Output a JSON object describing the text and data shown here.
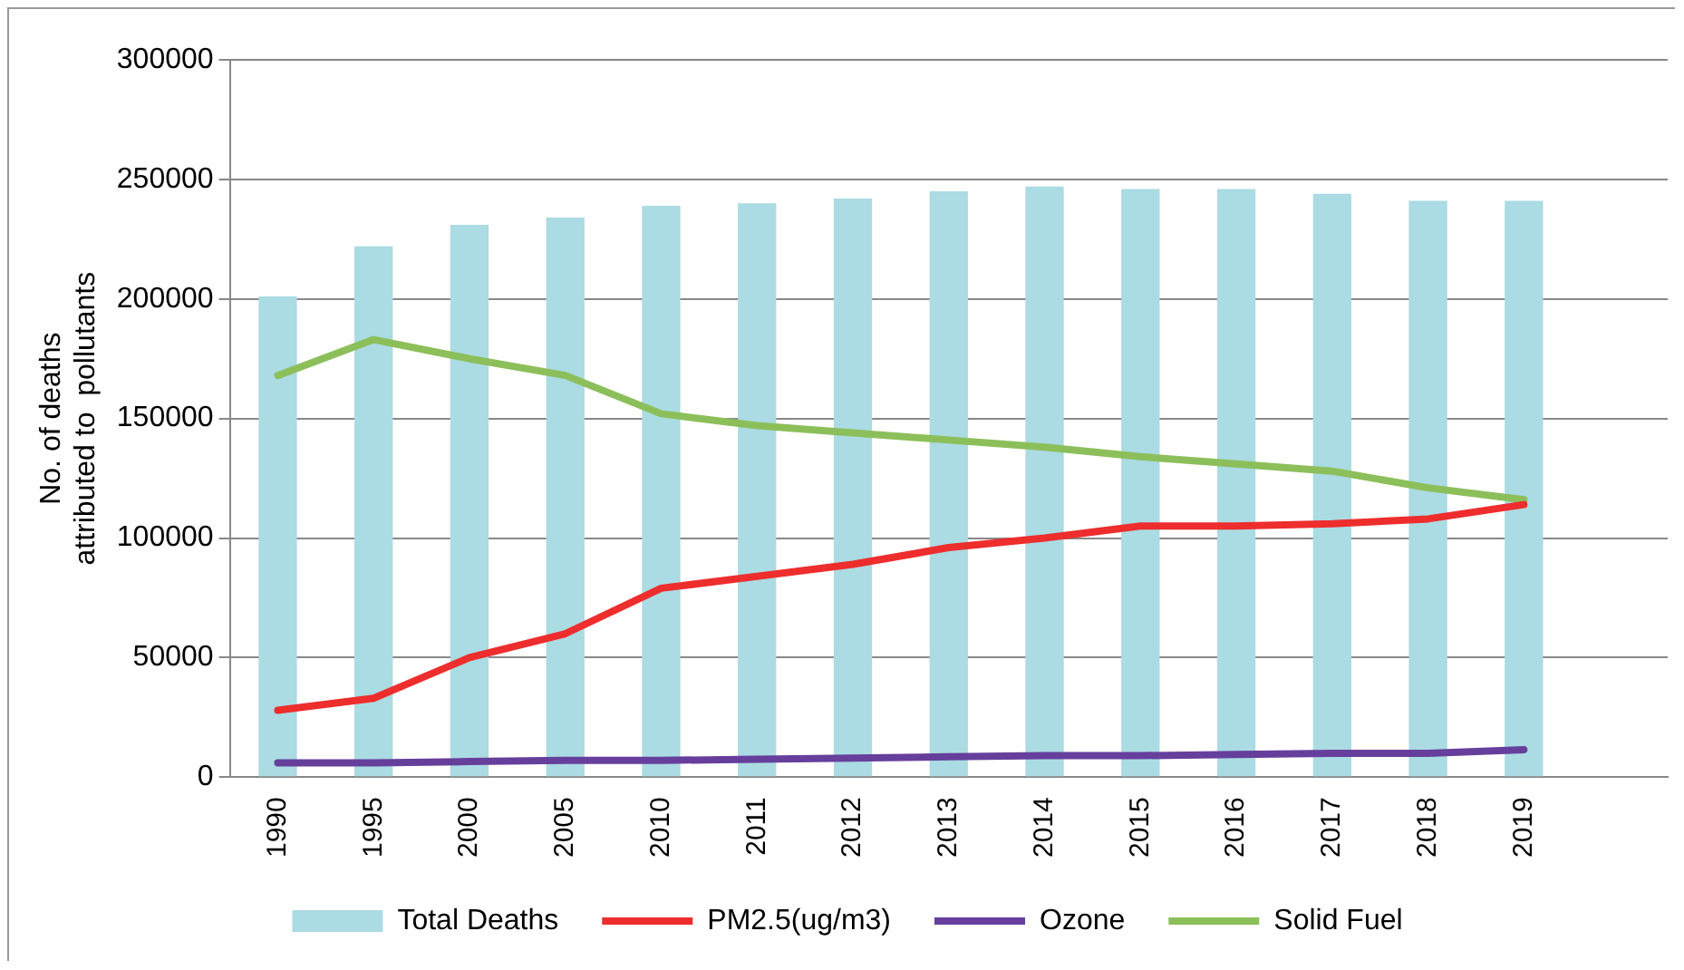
{
  "chart_data": {
    "type": "bar",
    "ylabel": "No. of deaths\nattributed to  pollutants",
    "categories": [
      "1990",
      "1995",
      "2000",
      "2005",
      "2010",
      "2011",
      "2012",
      "2013",
      "2014",
      "2015",
      "2016",
      "2017",
      "2018",
      "2019",
      null
    ],
    "series": [
      {
        "name": "Total Deaths",
        "type": "bar",
        "color": "#abdbe3",
        "values": [
          201000,
          222000,
          231000,
          234000,
          239000,
          240000,
          242000,
          245000,
          247000,
          246000,
          246000,
          244000,
          241000,
          241000,
          null
        ]
      },
      {
        "name": "PM2.5(ug/m3)",
        "type": "line",
        "color": "#ee2d2d",
        "values": [
          28000,
          33000,
          50000,
          60000,
          79000,
          84000,
          89000,
          96000,
          100000,
          105000,
          105000,
          106000,
          108000,
          114000,
          null
        ]
      },
      {
        "name": "Ozone",
        "type": "line",
        "color": "#663f9c",
        "values": [
          6000,
          6000,
          6500,
          7000,
          7000,
          7500,
          8000,
          8500,
          9000,
          9000,
          9500,
          10000,
          10000,
          11500,
          null
        ]
      },
      {
        "name": "Solid Fuel",
        "type": "line",
        "color": "#8cbf5a",
        "values": [
          168000,
          183000,
          175000,
          168000,
          152000,
          147000,
          144000,
          141000,
          138000,
          134000,
          131000,
          128000,
          121000,
          116000,
          null
        ]
      }
    ],
    "ylim": [
      0,
      300000
    ],
    "yticks": [
      0,
      50000,
      100000,
      150000,
      200000,
      250000,
      300000
    ],
    "grid": "y",
    "legend": "bottom",
    "marker": "none",
    "line_style": "solid"
  }
}
